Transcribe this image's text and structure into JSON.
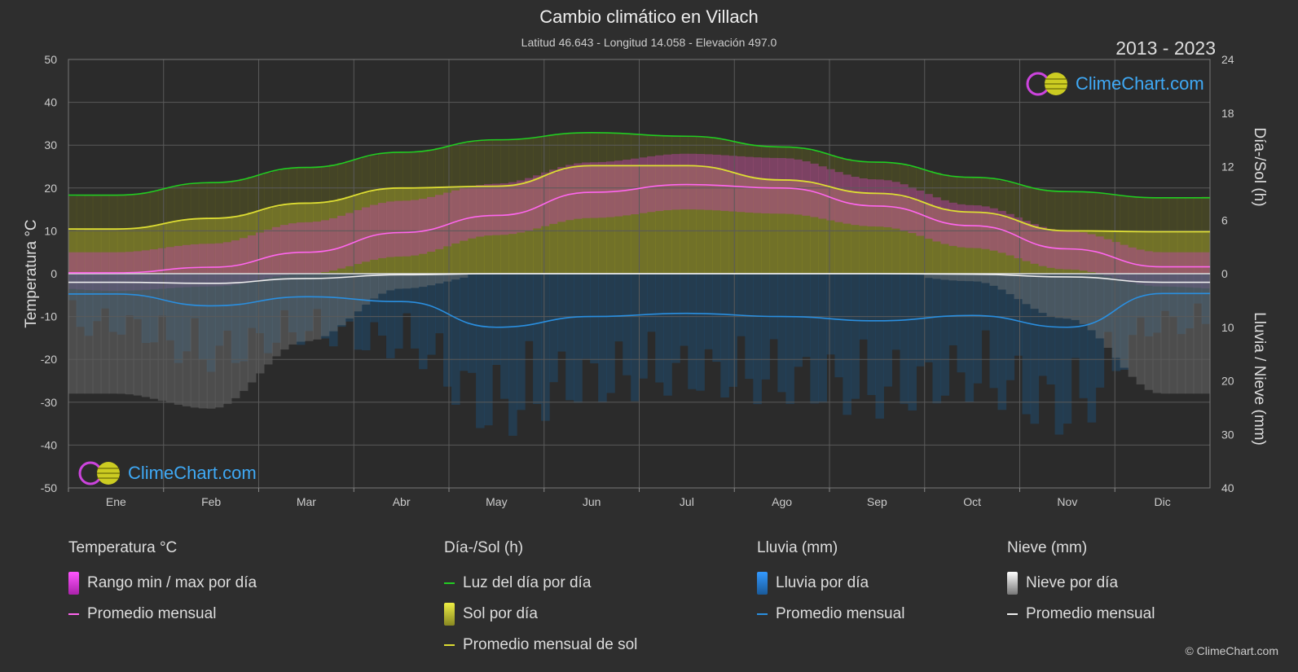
{
  "header": {
    "title": "Cambio climático en Villach",
    "subtitle": "Latitud 46.643 - Longitud 14.058 - Elevación 497.0",
    "years": "2013 - 2023"
  },
  "brand": {
    "text": "ClimeChart.com",
    "copyright": "© ClimeChart.com"
  },
  "chart_data": {
    "type": "line",
    "categories": [
      "Ene",
      "Feb",
      "Mar",
      "Abr",
      "May",
      "Jun",
      "Jul",
      "Ago",
      "Sep",
      "Oct",
      "Nov",
      "Dic"
    ],
    "left_axis": {
      "label": "Temperatura °C",
      "range": [
        -50,
        50
      ],
      "ticks": [
        50,
        40,
        30,
        20,
        10,
        0,
        -10,
        -20,
        -30,
        -40,
        -50
      ]
    },
    "right_axis_top": {
      "label": "Día-/Sol (h)",
      "range": [
        0,
        24
      ],
      "ticks": [
        24,
        18,
        12,
        6,
        0
      ]
    },
    "right_axis_bottom": {
      "label": "Lluvia / Nieve (mm)",
      "range": [
        0,
        40
      ],
      "ticks": [
        0,
        10,
        20,
        30,
        40
      ]
    },
    "grid": true,
    "series": [
      {
        "name": "Luz del día por día",
        "axis": "sun_h",
        "color": "#22cc22",
        "values": [
          8.8,
          10.2,
          11.9,
          13.6,
          15.0,
          15.8,
          15.4,
          14.2,
          12.5,
          10.8,
          9.2,
          8.5
        ]
      },
      {
        "name": "Promedio mensual de sol",
        "axis": "sun_h",
        "color": "#dddd33",
        "values": [
          5.0,
          6.2,
          7.9,
          9.6,
          9.8,
          12.1,
          12.1,
          10.5,
          9.0,
          6.9,
          4.8,
          4.7
        ]
      },
      {
        "name": "Promedio mensual",
        "group": "Temperatura °C",
        "axis": "temp_c",
        "color": "#ff66ee",
        "values": [
          0.2,
          1.5,
          5.0,
          9.6,
          13.6,
          19.0,
          20.8,
          20.0,
          15.8,
          11.2,
          5.8,
          1.6
        ]
      },
      {
        "name": "Promedio mensual",
        "group": "Lluvia (mm)",
        "axis": "precip_mm",
        "color": "#2a8fe0",
        "values": [
          3.8,
          6.0,
          4.3,
          5.2,
          10.0,
          8.0,
          7.4,
          8.0,
          8.8,
          7.8,
          10.0,
          3.7
        ]
      },
      {
        "name": "Promedio mensual",
        "group": "Nieve (mm)",
        "axis": "precip_mm",
        "color": "#eeeeee",
        "values": [
          1.6,
          1.8,
          0.9,
          0.2,
          0.0,
          0.0,
          0.0,
          0.0,
          0.0,
          0.1,
          0.6,
          1.6
        ]
      }
    ],
    "bands": {
      "temp_min": [
        -4,
        -3,
        0,
        4,
        9,
        13,
        15,
        14,
        11,
        6,
        1,
        -3
      ],
      "temp_max": [
        5,
        7,
        12,
        17,
        21,
        26,
        28,
        27,
        22,
        16,
        10,
        5
      ]
    }
  },
  "legend": {
    "groups": [
      {
        "title": "Temperatura °C",
        "items": [
          {
            "label": "Rango min / max por día",
            "kind": "bar",
            "color": "#e040e0"
          },
          {
            "label": "Promedio mensual",
            "kind": "line",
            "color": "#ff66ee"
          }
        ]
      },
      {
        "title": "Día-/Sol (h)",
        "items": [
          {
            "label": "Luz del día por día",
            "kind": "line",
            "color": "#22cc22"
          },
          {
            "label": "Sol por día",
            "kind": "bar",
            "color": "#cccc33"
          },
          {
            "label": "Promedio mensual de sol",
            "kind": "line",
            "color": "#dddd33"
          }
        ]
      },
      {
        "title": "Lluvia (mm)",
        "items": [
          {
            "label": "Lluvia por día",
            "kind": "bar",
            "color": "#2a8fe0"
          },
          {
            "label": "Promedio mensual",
            "kind": "line",
            "color": "#2a8fe0"
          }
        ]
      },
      {
        "title": "Nieve (mm)",
        "items": [
          {
            "label": "Nieve por día",
            "kind": "bar",
            "color": "#dddddd"
          },
          {
            "label": "Promedio mensual",
            "kind": "line",
            "color": "#eeeeee"
          }
        ]
      }
    ]
  }
}
